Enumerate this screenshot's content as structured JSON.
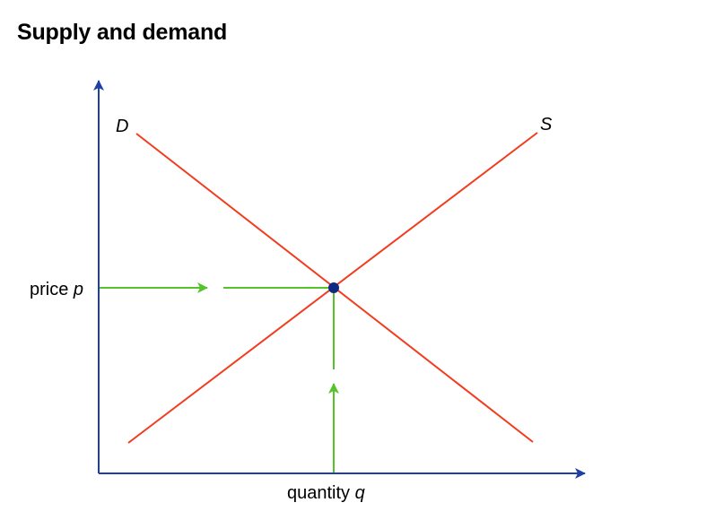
{
  "title": "Supply and demand",
  "labels": {
    "demand": "D",
    "supply": "S",
    "price_prefix": "price ",
    "price_var": "p",
    "quantity_prefix": "quantity ",
    "quantity_var": "q"
  },
  "colors": {
    "axis": "#1f3fa8",
    "curve": "#f23c1e",
    "guide": "#55c42a",
    "equilibrium": "#102a84",
    "text": "#000000"
  }
}
